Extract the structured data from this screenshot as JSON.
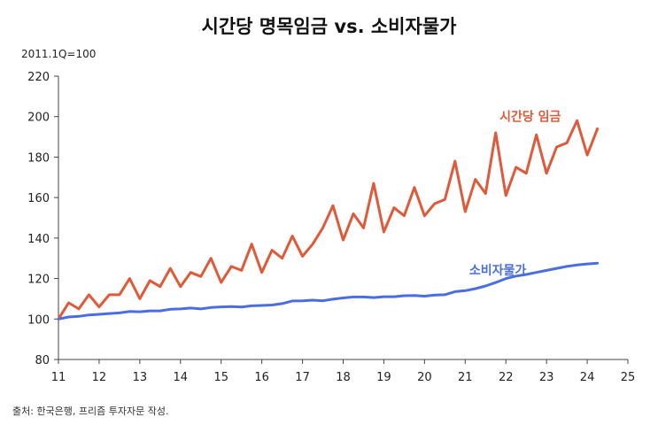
{
  "chart_data": {
    "type": "line",
    "title": "시간당 명목임금 vs. 소비자물가",
    "unit_label": "2011.1Q=100",
    "source": "출처: 한국은행, 프리즘 투자자문 작성.",
    "x_tick_labels": [
      "11",
      "12",
      "13",
      "14",
      "15",
      "16",
      "17",
      "18",
      "19",
      "20",
      "21",
      "22",
      "23",
      "24",
      "25"
    ],
    "y_tick_labels": [
      "80",
      "100",
      "120",
      "140",
      "160",
      "180",
      "200",
      "220"
    ],
    "xlim": [
      2011,
      2025
    ],
    "ylim": [
      80,
      220
    ],
    "grid": false,
    "colors": {
      "wage": "#e05a3a",
      "cpi": "#4a6ee0"
    },
    "series": [
      {
        "name": "시간당 임금",
        "x": [
          2011.0,
          2011.25,
          2011.5,
          2011.75,
          2012.0,
          2012.25,
          2012.5,
          2012.75,
          2013.0,
          2013.25,
          2013.5,
          2013.75,
          2014.0,
          2014.25,
          2014.5,
          2014.75,
          2015.0,
          2015.25,
          2015.5,
          2015.75,
          2016.0,
          2016.25,
          2016.5,
          2016.75,
          2017.0,
          2017.25,
          2017.5,
          2017.75,
          2018.0,
          2018.25,
          2018.5,
          2018.75,
          2019.0,
          2019.25,
          2019.5,
          2019.75,
          2020.0,
          2020.25,
          2020.5,
          2020.75,
          2021.0,
          2021.25,
          2021.5,
          2021.75,
          2022.0,
          2022.25,
          2022.5,
          2022.75,
          2023.0,
          2023.25,
          2023.5,
          2023.75,
          2024.0,
          2024.25
        ],
        "values": [
          100,
          108,
          105,
          112,
          106,
          112,
          112,
          120,
          110,
          119,
          116,
          125,
          116,
          123,
          121,
          130,
          118,
          126,
          124,
          137,
          123,
          134,
          130,
          141,
          131,
          137,
          145,
          156,
          139,
          152,
          145,
          167,
          143,
          155,
          151,
          165,
          151,
          157,
          159,
          178,
          153,
          169,
          162,
          192,
          161,
          175,
          172,
          191,
          172,
          185,
          187,
          198,
          181,
          194
        ]
      },
      {
        "name": "소비자물가",
        "x": [
          2011.0,
          2011.25,
          2011.5,
          2011.75,
          2012.0,
          2012.25,
          2012.5,
          2012.75,
          2013.0,
          2013.25,
          2013.5,
          2013.75,
          2014.0,
          2014.25,
          2014.5,
          2014.75,
          2015.0,
          2015.25,
          2015.5,
          2015.75,
          2016.0,
          2016.25,
          2016.5,
          2016.75,
          2017.0,
          2017.25,
          2017.5,
          2017.75,
          2018.0,
          2018.25,
          2018.5,
          2018.75,
          2019.0,
          2019.25,
          2019.5,
          2019.75,
          2020.0,
          2020.25,
          2020.5,
          2020.75,
          2021.0,
          2021.25,
          2021.5,
          2021.75,
          2022.0,
          2022.25,
          2022.5,
          2022.75,
          2023.0,
          2023.25,
          2023.5,
          2023.75,
          2024.0,
          2024.25
        ],
        "values": [
          100,
          101,
          101.3,
          102,
          102.3,
          102.7,
          103,
          103.7,
          103.6,
          104,
          104,
          104.8,
          105,
          105.4,
          105,
          105.7,
          106,
          106.1,
          105.9,
          106.5,
          106.7,
          106.9,
          107.6,
          108.9,
          109,
          109.3,
          109,
          109.8,
          110.4,
          110.9,
          110.9,
          110.6,
          111,
          111,
          111.5,
          111.6,
          111.3,
          111.8,
          112,
          113.5,
          114,
          115,
          116.3,
          118,
          120,
          121.2,
          122,
          123,
          124,
          125,
          126,
          126.7,
          127.2,
          127.6
        ]
      }
    ]
  }
}
